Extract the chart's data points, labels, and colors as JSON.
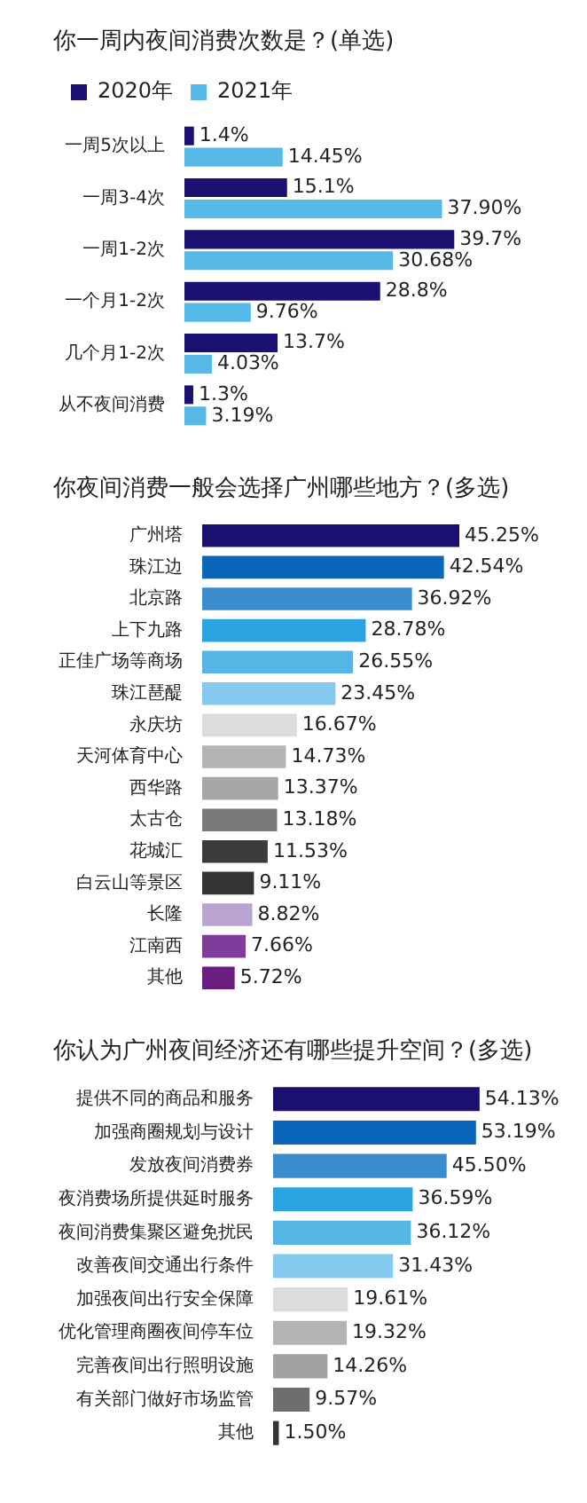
{
  "chart_data": [
    {
      "type": "bar",
      "orientation": "horizontal",
      "title": "你一周内夜间消费次数是？(单选)",
      "categories": [
        "一周5次以上",
        "一周3-4次",
        "一周1-2次",
        "一个月1-2次",
        "几个月1-2次",
        "从不夜间消费"
      ],
      "series": [
        {
          "name": "2020年",
          "color": "#1a1070",
          "values": [
            1.4,
            15.1,
            39.7,
            28.8,
            13.7,
            1.3
          ],
          "value_labels": [
            "1.4%",
            "15.1%",
            "39.7%",
            "28.8%",
            "13.7%",
            "1.3%"
          ]
        },
        {
          "name": "2021年",
          "color": "#56b8e6",
          "values": [
            14.45,
            37.9,
            30.68,
            9.76,
            4.03,
            3.19
          ],
          "value_labels": [
            "14.45%",
            "37.90%",
            "30.68%",
            "9.76%",
            "4.03%",
            "3.19%"
          ]
        }
      ],
      "legend": "top left",
      "tick_labels": "y"
    },
    {
      "type": "bar",
      "orientation": "horizontal",
      "title": "你夜间消费一般会选择广州哪些地方？(多选)",
      "categories": [
        "广州塔",
        "珠江边",
        "北京路",
        "上下九路",
        "正佳广场等商场",
        "珠江琶醍",
        "永庆坊",
        "天河体育中心",
        "西华路",
        "太古仓",
        "花城汇",
        "白云山等景区",
        "长隆",
        "江南西",
        "其他"
      ],
      "values": [
        45.25,
        42.54,
        36.92,
        28.78,
        26.55,
        23.45,
        16.67,
        14.73,
        13.37,
        13.18,
        11.53,
        9.11,
        8.82,
        7.66,
        5.72
      ],
      "value_labels": [
        "45.25%",
        "42.54%",
        "36.92%",
        "28.78%",
        "26.55%",
        "23.45%",
        "16.67%",
        "14.73%",
        "13.37%",
        "13.18%",
        "11.53%",
        "9.11%",
        "8.82%",
        "7.66%",
        "5.72%"
      ],
      "colors": [
        "#1a1070",
        "#0a66b8",
        "#3a8ccc",
        "#2aa3e0",
        "#55b6e6",
        "#86c9ee",
        "#dcdcdc",
        "#b4b4b4",
        "#a6a6a6",
        "#7a7a7a",
        "#3c3c3c",
        "#333333",
        "#b9a3cf",
        "#7e3d9a",
        "#6a1f7f"
      ],
      "tick_labels": "y"
    },
    {
      "type": "bar",
      "orientation": "horizontal",
      "title": "你认为广州夜间经济还有哪些提升空间？(多选)",
      "categories": [
        "提供不同的商品和服务",
        "加强商圈规划与设计",
        "发放夜间消费券",
        "夜消费场所提供延时服务",
        "夜间消费集聚区避免扰民",
        "改善夜间交通出行条件",
        "加强夜间出行安全保障",
        "优化管理商圈夜间停车位",
        "完善夜间出行照明设施",
        "有关部门做好市场监管",
        "其他"
      ],
      "values": [
        54.13,
        53.19,
        45.5,
        36.59,
        36.12,
        31.43,
        19.61,
        19.32,
        14.26,
        9.57,
        1.5
      ],
      "value_labels": [
        "54.13%",
        "53.19%",
        "45.50%",
        "36.59%",
        "36.12%",
        "31.43%",
        "19.61%",
        "19.32%",
        "14.26%",
        "9.57%",
        "1.50%"
      ],
      "colors": [
        "#1a1070",
        "#0a66b8",
        "#3a8ccc",
        "#2aa3e0",
        "#55b6e6",
        "#86c9ee",
        "#dcdcdc",
        "#b4b4b4",
        "#a0a0a0",
        "#6e6e6e",
        "#333333"
      ],
      "tick_labels": "y"
    }
  ]
}
